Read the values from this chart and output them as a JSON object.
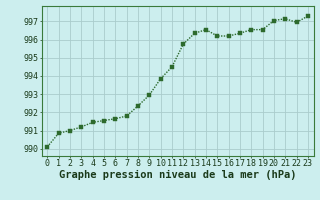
{
  "x": [
    0,
    1,
    2,
    3,
    4,
    5,
    6,
    7,
    8,
    9,
    10,
    11,
    12,
    13,
    14,
    15,
    16,
    17,
    18,
    19,
    20,
    21,
    22,
    23
  ],
  "y": [
    990.1,
    990.85,
    991.0,
    991.2,
    991.45,
    991.55,
    991.65,
    991.8,
    992.35,
    992.95,
    993.85,
    994.5,
    995.75,
    996.35,
    996.55,
    996.2,
    996.2,
    996.35,
    996.55,
    996.55,
    997.05,
    997.15,
    996.95,
    997.3
  ],
  "line_color": "#2d6a2d",
  "marker_color": "#2d6a2d",
  "bg_color": "#cceeee",
  "grid_color": "#aacccc",
  "xlabel": "Graphe pression niveau de la mer (hPa)",
  "ylim": [
    989.6,
    997.85
  ],
  "xlim": [
    -0.5,
    23.5
  ],
  "yticks": [
    990,
    991,
    992,
    993,
    994,
    995,
    996,
    997
  ],
  "xticks": [
    0,
    1,
    2,
    3,
    4,
    5,
    6,
    7,
    8,
    9,
    10,
    11,
    12,
    13,
    14,
    15,
    16,
    17,
    18,
    19,
    20,
    21,
    22,
    23
  ],
  "xlabel_fontsize": 7.5,
  "tick_fontsize": 6,
  "line_width": 1.0,
  "marker_size": 2.5
}
